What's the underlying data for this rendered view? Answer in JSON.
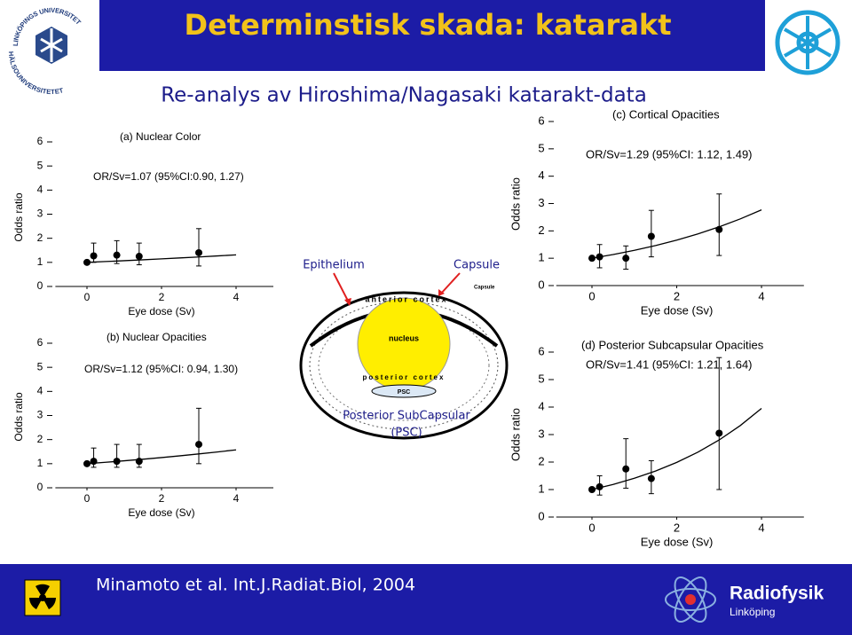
{
  "header": {
    "title": "Determinstisk skada:  katarakt",
    "logo_top": "LINKÖPINGS UNIVERSITET",
    "logo_bottom": "HÄLSOUNIVERSITETET"
  },
  "subtitle": "Re-analys av Hiroshima/Nagasaki katarakt-data",
  "diagram": {
    "epithelium": "Epithelium",
    "capsule": "Capsule",
    "capsule_small": "Capsule",
    "anterior": "anterior cortex",
    "nucleus": "nucleus",
    "posterior": "posterior cortex",
    "psc": "PSC",
    "psc_label_1": "Posterior SubCapsular",
    "psc_label_2": "(PSC)"
  },
  "footer": {
    "citation": "Minamoto et al. Int.J.Radiat.Biol, 2004",
    "brand": "Radiofysik",
    "brand_sub": "Linköping"
  },
  "chart_data": [
    {
      "type": "scatter",
      "title": "(a) Nuclear Color",
      "annotation": "OR/Sv=1.07 (95%CI:0.90, 1.27)",
      "xlabel": "Eye dose (Sv)",
      "ylabel": "Odds ratio",
      "x": [
        0,
        0.18,
        0.8,
        1.4,
        3.0
      ],
      "values": [
        1,
        1.27,
        1.3,
        1.25,
        1.4
      ],
      "lower": [
        1,
        1.0,
        0.95,
        0.9,
        0.85
      ],
      "upper": [
        1,
        1.8,
        1.9,
        1.8,
        2.4
      ],
      "fit": {
        "x": [
          0,
          0.5,
          1,
          1.5,
          2,
          2.5,
          3,
          3.5,
          4
        ],
        "values": [
          1,
          1.034,
          1.07,
          1.107,
          1.145,
          1.184,
          1.225,
          1.268,
          1.311
        ]
      },
      "xlim": [
        -0.8,
        5
      ],
      "ylim": [
        0,
        6
      ],
      "xticks": [
        0,
        2,
        4
      ],
      "yticks": [
        0,
        1,
        2,
        3,
        4,
        5,
        6
      ],
      "color": "#000000"
    },
    {
      "type": "scatter",
      "title": "(b) Nuclear Opacities",
      "annotation": "OR/Sv=1.12 (95%CI: 0.94, 1.30)",
      "xlabel": "Eye dose (Sv)",
      "ylabel": "Odds ratio",
      "x": [
        0,
        0.18,
        0.8,
        1.4,
        3.0
      ],
      "values": [
        1,
        1.1,
        1.1,
        1.1,
        1.8
      ],
      "lower": [
        1,
        0.85,
        0.85,
        0.85,
        1.0
      ],
      "upper": [
        1,
        1.65,
        1.8,
        1.8,
        3.3
      ],
      "fit": {
        "x": [
          0,
          0.5,
          1,
          1.5,
          2,
          2.5,
          3,
          3.5,
          4
        ],
        "values": [
          1,
          1.058,
          1.12,
          1.185,
          1.254,
          1.327,
          1.405,
          1.487,
          1.574
        ]
      },
      "xlim": [
        -0.8,
        5
      ],
      "ylim": [
        0,
        6
      ],
      "xticks": [
        0,
        2,
        4
      ],
      "yticks": [
        0,
        1,
        2,
        3,
        4,
        5,
        6
      ],
      "color": "#000000"
    },
    {
      "type": "scatter",
      "title": "(c) Cortical Opacities",
      "annotation": "OR/Sv=1.29 (95%CI: 1.12, 1.49)",
      "xlabel": "Eye dose (Sv)",
      "ylabel": "Odds ratio",
      "x": [
        0,
        0.18,
        0.8,
        1.4,
        3.0
      ],
      "values": [
        1,
        1.05,
        1.0,
        1.8,
        2.05
      ],
      "lower": [
        1,
        0.65,
        0.6,
        1.05,
        1.1
      ],
      "upper": [
        1,
        1.5,
        1.45,
        2.75,
        3.35
      ],
      "fit": {
        "x": [
          0,
          0.5,
          1,
          1.5,
          2,
          2.5,
          3,
          3.5,
          4
        ],
        "values": [
          1,
          1.136,
          1.29,
          1.465,
          1.664,
          1.89,
          2.147,
          2.438,
          2.769
        ]
      },
      "xlim": [
        -0.8,
        5
      ],
      "ylim": [
        0,
        6
      ],
      "xticks": [
        0,
        2,
        4
      ],
      "yticks": [
        0,
        1,
        2,
        3,
        4,
        5,
        6
      ],
      "color": "#000000"
    },
    {
      "type": "scatter",
      "title": "(d) Posterior Subcapsular Opacities",
      "annotation": "OR/Sv=1.41 (95%CI: 1.21, 1.64)",
      "xlabel": "Eye dose (Sv)",
      "ylabel": "Odds ratio",
      "x": [
        0,
        0.18,
        0.8,
        1.4,
        3.0
      ],
      "values": [
        1,
        1.1,
        1.75,
        1.4,
        3.05
      ],
      "lower": [
        1,
        0.8,
        1.05,
        0.85,
        1.0
      ],
      "upper": [
        1,
        1.5,
        2.85,
        2.05,
        5.8
      ],
      "fit": {
        "x": [
          0,
          0.5,
          1,
          1.5,
          2,
          2.5,
          3,
          3.5,
          4
        ],
        "values": [
          1,
          1.187,
          1.41,
          1.674,
          1.988,
          2.361,
          2.803,
          3.329,
          3.953
        ]
      },
      "xlim": [
        -0.8,
        5
      ],
      "ylim": [
        0,
        6
      ],
      "xticks": [
        0,
        2,
        4
      ],
      "yticks": [
        0,
        1,
        2,
        3,
        4,
        5,
        6
      ],
      "color": "#000000"
    }
  ]
}
